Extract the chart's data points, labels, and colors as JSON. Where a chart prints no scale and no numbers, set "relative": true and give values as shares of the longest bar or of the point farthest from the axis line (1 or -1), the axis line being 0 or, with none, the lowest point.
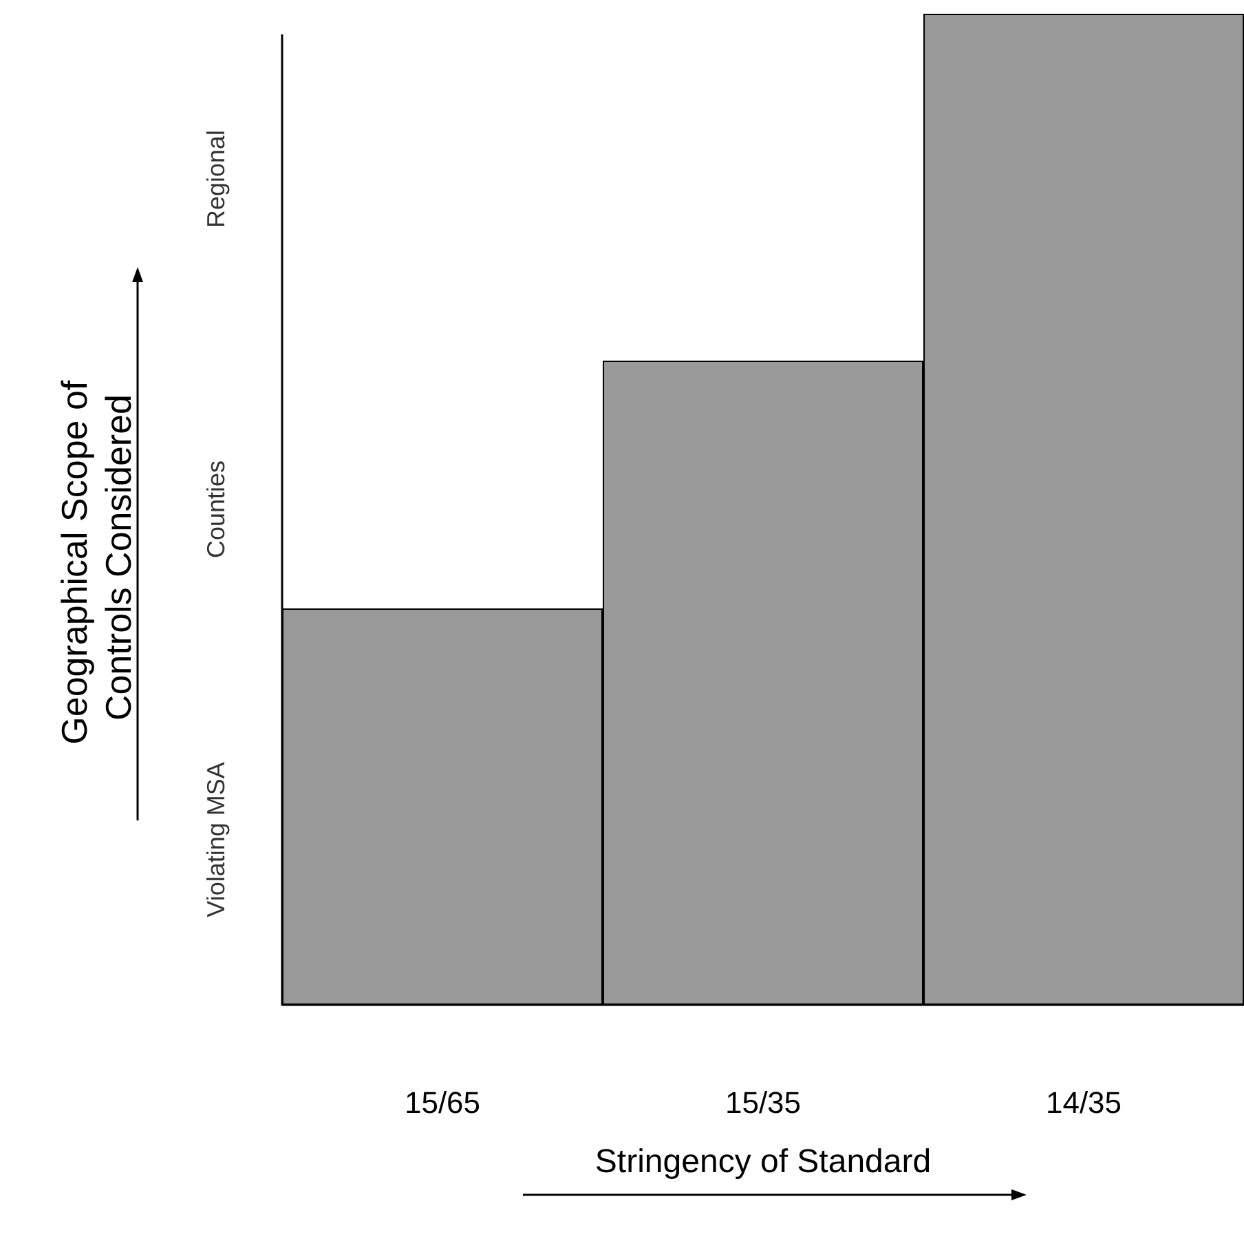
{
  "chart_data": {
    "type": "bar",
    "relative": true,
    "xlabel": "Stringency of Standard",
    "ylabel": "Geographical Scope of Controls Considered",
    "categories": [
      "15/65",
      "15/35",
      "14/35"
    ],
    "values": [
      0.4,
      0.65,
      1
    ],
    "color": "#999999",
    "annotations": [
      "Violating MSA",
      "Counties",
      "Regional"
    ]
  }
}
